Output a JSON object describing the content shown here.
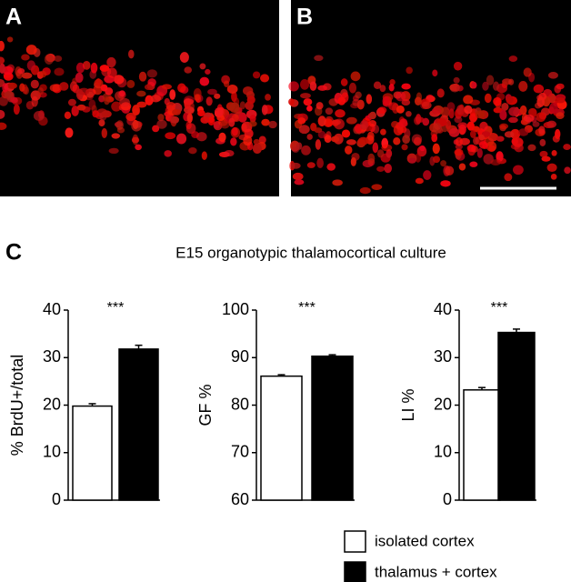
{
  "panels": [
    "A",
    "B",
    "C"
  ],
  "figure_title": "E15 organotypic thalamocortical culture",
  "legend": [
    {
      "name": "isolated cortex",
      "color": "#ffffff"
    },
    {
      "name": "thalamus + cortex",
      "color": "#000000"
    }
  ],
  "chart_data": [
    {
      "type": "bar",
      "ylabel": "% BrdU+/total",
      "annotation": "***",
      "values": [
        19.8,
        31.8
      ],
      "errors": [
        0.5,
        0.8
      ],
      "ylim": [
        0,
        40
      ],
      "yticks": [
        0,
        10,
        20,
        30,
        40
      ]
    },
    {
      "type": "bar",
      "ylabel": "GF %",
      "annotation": "***",
      "values": [
        86.1,
        90.3
      ],
      "errors": [
        0.3,
        0.3
      ],
      "ylim": [
        60,
        100
      ],
      "yticks": [
        60,
        70,
        80,
        90,
        100
      ]
    },
    {
      "type": "bar",
      "ylabel": "LI %",
      "annotation": "***",
      "values": [
        23.2,
        35.3
      ],
      "errors": [
        0.5,
        0.7
      ],
      "ylim": [
        0,
        40
      ],
      "yticks": [
        0,
        10,
        20,
        30,
        40
      ]
    }
  ]
}
